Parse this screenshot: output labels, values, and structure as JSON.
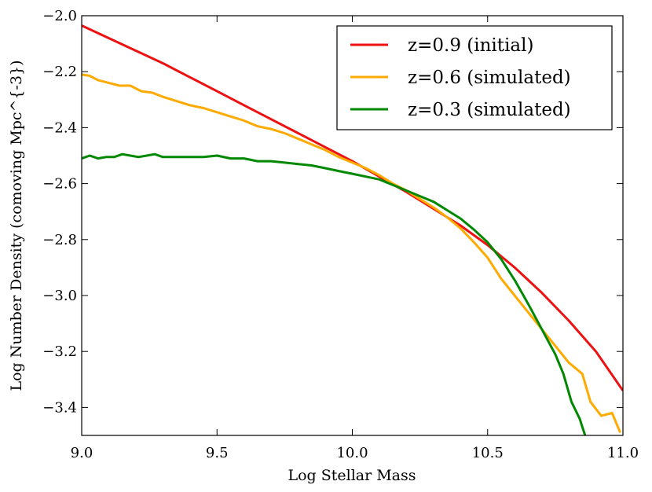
{
  "chart_data": {
    "type": "line",
    "title": "",
    "xlabel": "Log Stellar Mass",
    "ylabel": "Log Number Density (comoving Mpc^{-3})",
    "xlim": [
      9.0,
      11.0
    ],
    "ylim": [
      -3.5,
      -2.0
    ],
    "xticks": [
      9.0,
      9.5,
      10.0,
      10.5,
      11.0
    ],
    "xtick_labels": [
      "9.0",
      "9.5",
      "10.0",
      "10.5",
      "11.0"
    ],
    "yticks": [
      -2.0,
      -2.2,
      -2.4,
      -2.6,
      -2.8,
      -3.0,
      -3.2,
      -3.4
    ],
    "ytick_labels": [
      "−2.0",
      "−2.2",
      "−2.4",
      "−2.6",
      "−2.8",
      "−3.0",
      "−3.2",
      "−3.4"
    ],
    "grid": false,
    "legend_position": "top-right",
    "series": [
      {
        "name": "z=0.9 (initial)",
        "color": "#ee1111",
        "x": [
          9.0,
          9.1,
          9.2,
          9.3,
          9.4,
          9.5,
          9.6,
          9.7,
          9.8,
          9.9,
          10.0,
          10.1,
          10.2,
          10.3,
          10.4,
          10.5,
          10.6,
          10.7,
          10.8,
          10.9,
          11.0
        ],
        "y": [
          -2.035,
          -2.08,
          -2.125,
          -2.17,
          -2.22,
          -2.27,
          -2.32,
          -2.37,
          -2.42,
          -2.47,
          -2.52,
          -2.575,
          -2.63,
          -2.69,
          -2.75,
          -2.82,
          -2.9,
          -2.99,
          -3.09,
          -3.2,
          -3.34
        ]
      },
      {
        "name": "z=0.6 (simulated)",
        "color": "#ffaa00",
        "x": [
          9.0,
          9.03,
          9.06,
          9.1,
          9.14,
          9.18,
          9.22,
          9.26,
          9.3,
          9.35,
          9.4,
          9.45,
          9.5,
          9.55,
          9.6,
          9.65,
          9.7,
          9.75,
          9.8,
          9.85,
          9.9,
          9.95,
          10.0,
          10.05,
          10.1,
          10.15,
          10.2,
          10.25,
          10.3,
          10.35,
          10.4,
          10.45,
          10.5,
          10.55,
          10.6,
          10.65,
          10.7,
          10.75,
          10.8,
          10.85,
          10.88,
          10.92,
          10.96,
          10.99
        ],
        "y": [
          -2.21,
          -2.215,
          -2.23,
          -2.24,
          -2.25,
          -2.25,
          -2.27,
          -2.275,
          -2.29,
          -2.305,
          -2.32,
          -2.33,
          -2.345,
          -2.36,
          -2.375,
          -2.395,
          -2.405,
          -2.42,
          -2.44,
          -2.46,
          -2.48,
          -2.505,
          -2.525,
          -2.545,
          -2.57,
          -2.6,
          -2.625,
          -2.655,
          -2.685,
          -2.72,
          -2.76,
          -2.81,
          -2.865,
          -2.94,
          -3.0,
          -3.06,
          -3.12,
          -3.18,
          -3.24,
          -3.28,
          -3.38,
          -3.43,
          -3.42,
          -3.49
        ]
      },
      {
        "name": "z=0.3 (simulated)",
        "color": "#008800",
        "x": [
          9.0,
          9.03,
          9.06,
          9.09,
          9.12,
          9.15,
          9.18,
          9.21,
          9.24,
          9.27,
          9.3,
          9.35,
          9.4,
          9.45,
          9.5,
          9.55,
          9.6,
          9.65,
          9.7,
          9.75,
          9.8,
          9.85,
          9.9,
          9.95,
          10.0,
          10.05,
          10.1,
          10.15,
          10.2,
          10.25,
          10.3,
          10.35,
          10.4,
          10.45,
          10.5,
          10.55,
          10.6,
          10.65,
          10.7,
          10.75,
          10.78,
          10.81,
          10.84,
          10.86
        ],
        "y": [
          -2.51,
          -2.5,
          -2.51,
          -2.505,
          -2.505,
          -2.495,
          -2.5,
          -2.505,
          -2.5,
          -2.495,
          -2.505,
          -2.505,
          -2.505,
          -2.505,
          -2.5,
          -2.51,
          -2.51,
          -2.52,
          -2.52,
          -2.525,
          -2.53,
          -2.535,
          -2.545,
          -2.555,
          -2.565,
          -2.575,
          -2.585,
          -2.605,
          -2.625,
          -2.645,
          -2.665,
          -2.695,
          -2.725,
          -2.765,
          -2.81,
          -2.87,
          -2.945,
          -3.03,
          -3.12,
          -3.21,
          -3.28,
          -3.38,
          -3.44,
          -3.5
        ]
      }
    ]
  }
}
